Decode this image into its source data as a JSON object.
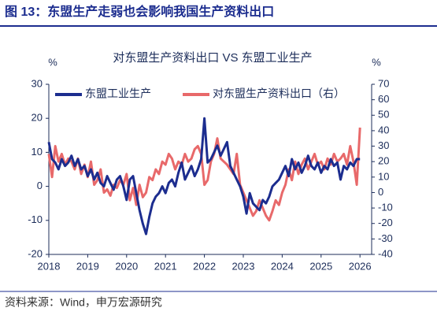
{
  "header": "图 13：东盟生产走弱也会影响我国生产资料出口",
  "source": "资料来源：Wind，申万宏源研究",
  "chart_data": {
    "type": "line",
    "title": "对东盟生产资料出口 VS 东盟工业生产",
    "ylabel": "%",
    "y2label": "%",
    "x": [
      2018,
      2018.083,
      2018.167,
      2018.25,
      2018.333,
      2018.417,
      2018.5,
      2018.583,
      2018.667,
      2018.75,
      2018.833,
      2018.917,
      2019,
      2019.083,
      2019.167,
      2019.25,
      2019.333,
      2019.417,
      2019.5,
      2019.583,
      2019.667,
      2019.75,
      2019.833,
      2019.917,
      2020,
      2020.083,
      2020.167,
      2020.25,
      2020.333,
      2020.417,
      2020.5,
      2020.583,
      2020.667,
      2020.75,
      2020.833,
      2020.917,
      2021,
      2021.083,
      2021.167,
      2021.25,
      2021.333,
      2021.417,
      2021.5,
      2021.583,
      2021.667,
      2021.75,
      2021.833,
      2021.917,
      2022,
      2022.083,
      2022.167,
      2022.25,
      2022.333,
      2022.417,
      2022.5,
      2022.583,
      2022.667,
      2022.75,
      2022.833,
      2022.917,
      2023,
      2023.083,
      2023.167,
      2023.25,
      2023.333,
      2023.417,
      2023.5,
      2023.583,
      2023.667,
      2023.75,
      2023.833,
      2023.917,
      2024,
      2024.083,
      2024.167,
      2024.25,
      2024.333,
      2024.417,
      2024.5,
      2024.583,
      2024.667,
      2024.75,
      2024.833,
      2024.917,
      2025,
      2025.083,
      2025.167,
      2025.25,
      2025.333,
      2025.417,
      2025.5,
      2025.583,
      2025.667,
      2025.75,
      2025.833,
      2025.917,
      2026
    ],
    "series": [
      {
        "name": "东盟工业生产",
        "color": "#1c2d8f",
        "axis": "y",
        "values": [
          13,
          8,
          7,
          5,
          8,
          6,
          7,
          9,
          6,
          8,
          5,
          6,
          3,
          5,
          2,
          4,
          1,
          0,
          3,
          1,
          -1,
          2,
          3,
          0,
          -4,
          2,
          3,
          -2,
          -7,
          -11,
          -14,
          -9,
          -5,
          -3,
          -2,
          0,
          -2,
          1,
          2,
          0,
          4,
          7,
          2,
          4,
          6,
          3,
          5,
          8,
          20,
          7,
          8,
          10,
          12,
          9,
          11,
          13,
          6,
          4,
          2,
          0,
          -3,
          -8,
          -2,
          -5,
          -6,
          -7,
          -4,
          -5,
          -3,
          0,
          1,
          2,
          4,
          6,
          3,
          8,
          5,
          7,
          4,
          6,
          9,
          6,
          5,
          7,
          4,
          6,
          5,
          8,
          6,
          7,
          2,
          6,
          5,
          7,
          6,
          8,
          8
        ]
      },
      {
        "name": "对东盟生产资料出口（右）",
        "color": "#e8696a",
        "axis": "y2",
        "values": [
          25,
          10,
          30,
          20,
          25,
          18,
          22,
          20,
          15,
          22,
          12,
          18,
          10,
          20,
          5,
          8,
          15,
          0,
          2,
          -2,
          5,
          3,
          8,
          5,
          12,
          -5,
          3,
          -8,
          5,
          -3,
          0,
          10,
          8,
          15,
          12,
          20,
          18,
          25,
          22,
          15,
          20,
          18,
          25,
          20,
          22,
          28,
          30,
          25,
          5,
          8,
          20,
          25,
          35,
          22,
          20,
          18,
          15,
          12,
          25,
          5,
          0,
          -5,
          -10,
          -15,
          -12,
          -5,
          -10,
          -15,
          -18,
          -12,
          -5,
          -8,
          0,
          5,
          15,
          8,
          20,
          12,
          18,
          22,
          15,
          20,
          25,
          18,
          20,
          15,
          22,
          18,
          25,
          20,
          22,
          25,
          18,
          30,
          20,
          5,
          42
        ]
      }
    ],
    "xlim": [
      2018,
      2026.3
    ],
    "xticks": [
      2018,
      2019,
      2020,
      2021,
      2022,
      2023,
      2024,
      2025,
      2026
    ],
    "ylim": [
      -20,
      30
    ],
    "yticks": [
      30,
      20,
      10,
      0,
      -10,
      -20
    ],
    "y2lim": [
      -40,
      70
    ],
    "y2ticks": [
      70,
      60,
      50,
      40,
      30,
      20,
      10,
      0,
      -10,
      -20,
      -30,
      -40
    ]
  }
}
